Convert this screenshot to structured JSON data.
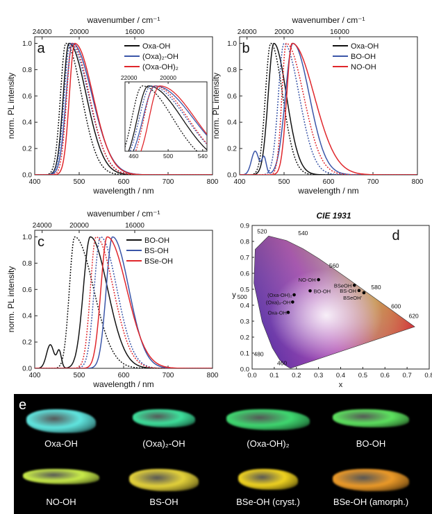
{
  "colors": {
    "black": "#111111",
    "blue": "#3a55a8",
    "red": "#e0262b"
  },
  "chart_data": [
    {
      "panel": "a",
      "type": "line",
      "xlabel": "wavelength / nm",
      "ylabel": "norm. PL intensity",
      "top_axis_label": "wavenumber / cm⁻¹",
      "xlim": [
        400,
        800
      ],
      "ylim": [
        0,
        1.05
      ],
      "x_ticks": [
        "400",
        "500",
        "600",
        "700",
        "800"
      ],
      "y_ticks": [
        "0.0",
        "0.2",
        "0.4",
        "0.6",
        "0.8",
        "1.0"
      ],
      "top_ticks": [
        "24000",
        "20000",
        "16000"
      ],
      "legend": [
        "Oxa-OH",
        "(Oxa)₂-OH",
        "(Oxa-OH)₂"
      ],
      "series": [
        {
          "name": "Oxa-OH",
          "color": "black",
          "style": "solid",
          "peak": 477,
          "w1": 18,
          "w2": 55
        },
        {
          "name": "Oxa-OH",
          "color": "black",
          "style": "dotted",
          "peak": 470,
          "w1": 17,
          "w2": 50
        },
        {
          "name": "(Oxa)₂-OH",
          "color": "blue",
          "style": "solid",
          "peak": 485,
          "w1": 20,
          "w2": 62
        },
        {
          "name": "(Oxa)₂-OH",
          "color": "blue",
          "style": "dotted",
          "peak": 480,
          "w1": 19,
          "w2": 58
        },
        {
          "name": "(Oxa-OH)₂",
          "color": "red",
          "style": "solid",
          "peak": 490,
          "w1": 17,
          "w2": 58
        },
        {
          "name": "(Oxa-OH)₂",
          "color": "red",
          "style": "dotted",
          "peak": 484,
          "w1": 17,
          "w2": 55
        }
      ],
      "inset": {
        "xlim": [
          450,
          545
        ],
        "ylim": [
          0.2,
          1.05
        ],
        "x_ticks": [
          "460",
          "500",
          "540"
        ],
        "top_ticks": [
          "22000",
          "20000"
        ]
      }
    },
    {
      "panel": "b",
      "type": "line",
      "xlabel": "wavelength / nm",
      "ylabel": "norm. PL intensity",
      "top_axis_label": "wavenumber / cm⁻¹",
      "xlim": [
        400,
        800
      ],
      "ylim": [
        0,
        1.05
      ],
      "x_ticks": [
        "400",
        "500",
        "600",
        "700",
        "800"
      ],
      "y_ticks": [
        "0.0",
        "0.2",
        "0.4",
        "0.6",
        "0.8",
        "1.0"
      ],
      "top_ticks": [
        "24000",
        "20000",
        "16000"
      ],
      "legend": [
        "Oxa-OH",
        "BO-OH",
        "NO-OH"
      ],
      "series": [
        {
          "name": "Oxa-OH",
          "color": "black",
          "style": "solid",
          "peak": 477,
          "w1": 18,
          "w2": 40
        },
        {
          "name": "Oxa-OH",
          "color": "black",
          "style": "dotted",
          "peak": 470,
          "w1": 17,
          "w2": 38
        },
        {
          "name": "BO-OH",
          "color": "blue",
          "style": "solid",
          "peak": 520,
          "w1": 24,
          "w2": 52,
          "shoulder": true
        },
        {
          "name": "BO-OH",
          "color": "blue",
          "style": "dotted",
          "peak": 500,
          "w1": 18,
          "w2": 48
        },
        {
          "name": "NO-OH",
          "color": "red",
          "style": "solid",
          "peak": 518,
          "w1": 17,
          "w2": 70
        },
        {
          "name": "NO-OH",
          "color": "red",
          "style": "dotted",
          "peak": 505,
          "w1": 14,
          "w2": 55
        }
      ]
    },
    {
      "panel": "c",
      "type": "line",
      "xlabel": "wavelength / nm",
      "ylabel": "norm. PL intensity",
      "top_axis_label": "wavenumber / cm⁻¹",
      "xlim": [
        400,
        800
      ],
      "ylim": [
        0,
        1.05
      ],
      "x_ticks": [
        "400",
        "500",
        "600",
        "700",
        "800"
      ],
      "y_ticks": [
        "0.0",
        "0.2",
        "0.4",
        "0.6",
        "0.8",
        "1.0"
      ],
      "top_ticks": [
        "24000",
        "20000",
        "16000"
      ],
      "legend": [
        "BO-OH",
        "BS-OH",
        "BSe-OH"
      ],
      "series": [
        {
          "name": "BO-OH",
          "color": "black",
          "style": "solid",
          "peak": 525,
          "w1": 22,
          "w2": 55,
          "shoulder": true
        },
        {
          "name": "BO-OH",
          "color": "black",
          "style": "dotted",
          "peak": 490,
          "w1": 17,
          "w2": 60
        },
        {
          "name": "BS-OH",
          "color": "blue",
          "style": "solid",
          "peak": 575,
          "w1": 20,
          "w2": 52
        },
        {
          "name": "BS-OH",
          "color": "blue",
          "style": "dotted",
          "peak": 548,
          "w1": 20,
          "w2": 52
        },
        {
          "name": "BSe-OH",
          "color": "red",
          "style": "solid",
          "peak": 563,
          "w1": 20,
          "w2": 62
        },
        {
          "name": "BSe-OH",
          "color": "red",
          "style": "dotted",
          "peak": 538,
          "w1": 18,
          "w2": 55
        }
      ]
    },
    {
      "panel": "d",
      "type": "scatter",
      "title": "CIE 1931",
      "xlabel": "x",
      "ylabel": "y",
      "xlim": [
        0,
        0.8
      ],
      "ylim": [
        0,
        0.9
      ],
      "x_ticks": [
        "0.0",
        "0.1",
        "0.2",
        "0.3",
        "0.4",
        "0.5",
        "0.6",
        "0.7",
        "0.8"
      ],
      "y_ticks": [
        "0.0",
        "0.1",
        "0.2",
        "0.3",
        "0.4",
        "0.5",
        "0.6",
        "0.7",
        "0.8",
        "0.9"
      ],
      "wavelength_labels": [
        "460",
        "480",
        "500",
        "520",
        "540",
        "560",
        "580",
        "600",
        "620"
      ],
      "points": [
        {
          "label": "Oxa-OH",
          "x": 0.163,
          "y": 0.355
        },
        {
          "label": "(Oxa)₂-OH",
          "x": 0.183,
          "y": 0.42
        },
        {
          "label": "(Oxa-OH)₂",
          "x": 0.19,
          "y": 0.465
        },
        {
          "label": "BO-OH",
          "x": 0.262,
          "y": 0.49
        },
        {
          "label": "NO-OH",
          "x": 0.3,
          "y": 0.56
        },
        {
          "label": "BSeOH",
          "x": 0.462,
          "y": 0.525
        },
        {
          "label": "BS-OH",
          "x": 0.483,
          "y": 0.492
        },
        {
          "label": "BSeOH'",
          "x": 0.505,
          "y": 0.478
        }
      ]
    }
  ],
  "photos": {
    "panel": "e",
    "labels": [
      "Oxa-OH",
      "(Oxa)₂-OH",
      "(Oxa-OH)₂",
      "BO-OH",
      "NO-OH",
      "BS-OH",
      "BSe-OH (cryst.)",
      "BSe-OH (amorph.)"
    ],
    "colors": [
      "#60e6e0",
      "#3ee09c",
      "#3fd870",
      "#5de25f",
      "#c9ec4a",
      "#e4d23a",
      "#f0d320",
      "#ec9a28"
    ]
  }
}
